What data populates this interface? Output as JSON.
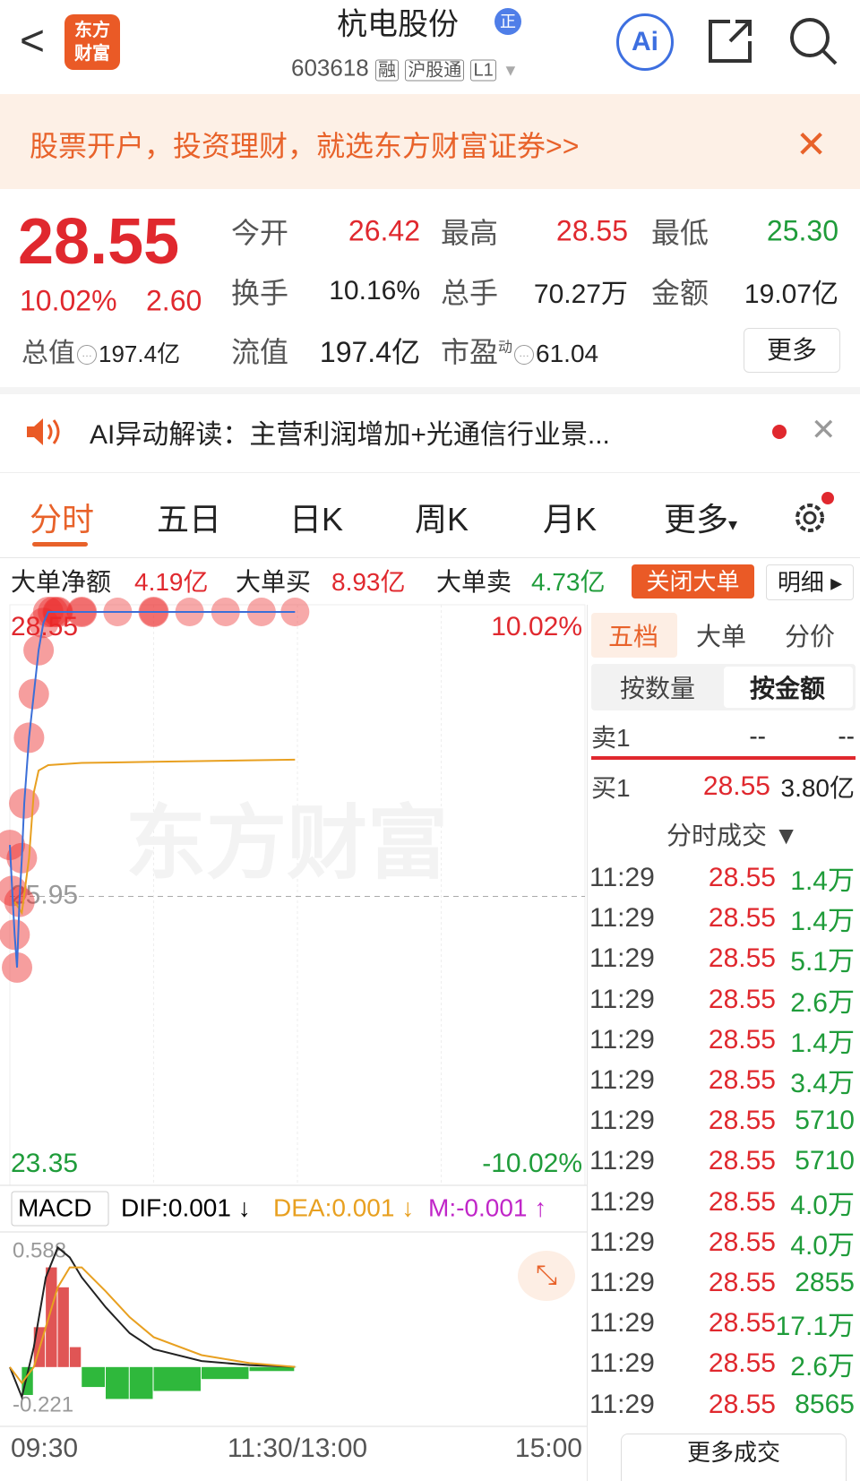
{
  "header": {
    "logo": [
      "东方",
      "财富"
    ],
    "title": "杭电股份",
    "badge": "正",
    "code": "603618",
    "tags": [
      "融",
      "沪股通",
      "L1"
    ],
    "ai": "Ai"
  },
  "banner": {
    "text": "股票开户，投资理财，就选东方财富证券>>"
  },
  "quote": {
    "price": "28.55",
    "change_pct": "10.02%",
    "change": "2.60",
    "stats": [
      [
        "今开",
        "26.42"
      ],
      [
        "最高",
        "28.55"
      ],
      [
        "最低",
        "25.30"
      ],
      [
        "换手",
        "10.16%"
      ],
      [
        "总手",
        "70.27万"
      ],
      [
        "金额",
        "19.07亿"
      ],
      [
        "总值",
        "197.4亿"
      ],
      [
        "流值",
        "197.4亿"
      ],
      [
        "市盈",
        "61.04"
      ]
    ],
    "pe_sup": "动",
    "more": "更多"
  },
  "ai_bar": {
    "text": "AI异动解读：主营利润增加+光通信行业景..."
  },
  "tabs": [
    "分时",
    "五日",
    "日K",
    "周K",
    "月K",
    "更多"
  ],
  "big_orders": {
    "net_label": "大单净额",
    "net": "4.19亿",
    "buy_label": "大单买",
    "buy": "8.93亿",
    "sell_label": "大单卖",
    "sell": "4.73亿",
    "close": "关闭大单",
    "detail": "明细"
  },
  "intraday": {
    "watermark": "东方财富",
    "ylim": [
      23.35,
      28.55
    ],
    "yticks": [
      28.55,
      25.95,
      23.35
    ],
    "pct_labels": [
      "10.02%",
      "-10.02%"
    ],
    "xlim": [
      0,
      240
    ],
    "xticks": [
      "09:30",
      "11:30/13:00",
      "15:00"
    ],
    "price": {
      "color": "#3b6fd8",
      "x": [
        0,
        1,
        2,
        3,
        4,
        5,
        6,
        8,
        10,
        12,
        14,
        16,
        18,
        20,
        30,
        60,
        90,
        119
      ],
      "values": [
        26.42,
        26.0,
        25.6,
        25.3,
        25.9,
        26.3,
        26.8,
        27.4,
        27.8,
        28.2,
        28.45,
        28.55,
        28.55,
        28.55,
        28.55,
        28.55,
        28.55,
        28.55
      ]
    },
    "avg": {
      "color": "#e8a020",
      "x": [
        2,
        5,
        8,
        10,
        12,
        16,
        30,
        60,
        119
      ],
      "values": [
        25.9,
        25.8,
        26.3,
        26.9,
        27.1,
        27.15,
        27.17,
        27.18,
        27.2
      ]
    }
  },
  "macd": {
    "name": "MACD",
    "dif_label": "DIF:0.001 ↓",
    "dea_label": "DEA:0.001 ↓",
    "m_label": "M:-0.001 ↑",
    "ylim": [
      -0.221,
      0.588
    ],
    "yticks": [
      0.588,
      -0.221
    ],
    "x": [
      0,
      5,
      10,
      15,
      20,
      25,
      30,
      40,
      50,
      60,
      80,
      100,
      119
    ],
    "dif": [
      0,
      -0.15,
      0.1,
      0.45,
      0.6,
      0.55,
      0.45,
      0.3,
      0.17,
      0.09,
      0.03,
      0.01,
      0.001
    ],
    "dea": [
      0,
      -0.08,
      0,
      0.2,
      0.4,
      0.5,
      0.5,
      0.38,
      0.25,
      0.15,
      0.06,
      0.02,
      0.001
    ],
    "m": [
      0,
      -0.14,
      0.2,
      0.5,
      0.4,
      0.1,
      -0.1,
      -0.16,
      -0.16,
      -0.12,
      -0.06,
      -0.02,
      -0.001
    ]
  },
  "order_book": {
    "tabs": [
      "五档",
      "大单",
      "分价"
    ],
    "modes": [
      "按数量",
      "按金额"
    ],
    "sell": [
      "卖1",
      "--",
      "--"
    ],
    "buy": [
      "买1",
      "28.55",
      "3.80亿"
    ]
  },
  "trades": {
    "title": "分时成交 ▼",
    "more": "更多成交",
    "rows": [
      [
        "11:29",
        "28.55",
        "1.4万"
      ],
      [
        "11:29",
        "28.55",
        "1.4万"
      ],
      [
        "11:29",
        "28.55",
        "5.1万"
      ],
      [
        "11:29",
        "28.55",
        "2.6万"
      ],
      [
        "11:29",
        "28.55",
        "1.4万"
      ],
      [
        "11:29",
        "28.55",
        "3.4万"
      ],
      [
        "11:29",
        "28.55",
        "5710"
      ],
      [
        "11:29",
        "28.55",
        "5710"
      ],
      [
        "11:29",
        "28.55",
        "4.0万"
      ],
      [
        "11:29",
        "28.55",
        "4.0万"
      ],
      [
        "11:29",
        "28.55",
        "2855"
      ],
      [
        "11:29",
        "28.55",
        "17.1万"
      ],
      [
        "11:29",
        "28.55",
        "2.6万"
      ],
      [
        "11:29",
        "28.55",
        "8565"
      ]
    ]
  }
}
